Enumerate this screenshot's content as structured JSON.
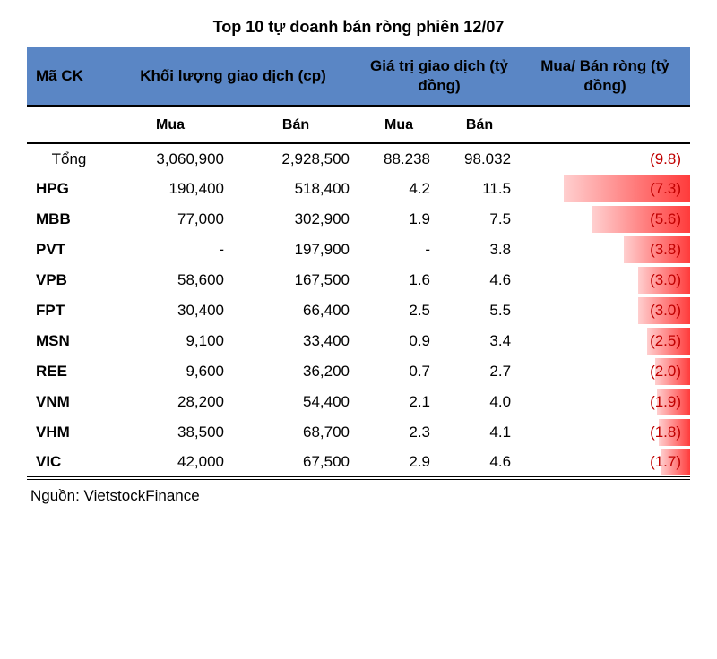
{
  "title": "Top 10 tự doanh bán ròng phiên 12/07",
  "source": "Nguồn: VietstockFinance",
  "colors": {
    "header_bg": "#5a86c5",
    "negative_text": "#c00000",
    "bar_start": "#ffcfcf",
    "bar_end": "#ff3b3b",
    "rule": "#000000"
  },
  "headers": {
    "code": "Mã CK",
    "volume": "Khối lượng giao dịch (cp)",
    "value": "Giá trị giao dịch (tỷ đồng)",
    "net": "Mua/ Bán ròng (tỷ đồng)",
    "buy": "Mua",
    "sell": "Bán"
  },
  "max_abs_net": 9.8,
  "total": {
    "code": "Tổng",
    "buy_vol": "3,060,900",
    "sell_vol": "2,928,500",
    "buy_val": "88.238",
    "sell_val": "98.032",
    "net": "(9.8)",
    "net_raw": 9.8,
    "bar": false
  },
  "rows": [
    {
      "code": "HPG",
      "buy_vol": "190,400",
      "sell_vol": "518,400",
      "buy_val": "4.2",
      "sell_val": "11.5",
      "net": "(7.3)",
      "net_raw": 7.3
    },
    {
      "code": "MBB",
      "buy_vol": "77,000",
      "sell_vol": "302,900",
      "buy_val": "1.9",
      "sell_val": "7.5",
      "net": "(5.6)",
      "net_raw": 5.6
    },
    {
      "code": "PVT",
      "buy_vol": "-",
      "sell_vol": "197,900",
      "buy_val": "-",
      "sell_val": "3.8",
      "net": "(3.8)",
      "net_raw": 3.8
    },
    {
      "code": "VPB",
      "buy_vol": "58,600",
      "sell_vol": "167,500",
      "buy_val": "1.6",
      "sell_val": "4.6",
      "net": "(3.0)",
      "net_raw": 3.0
    },
    {
      "code": "FPT",
      "buy_vol": "30,400",
      "sell_vol": "66,400",
      "buy_val": "2.5",
      "sell_val": "5.5",
      "net": "(3.0)",
      "net_raw": 3.0
    },
    {
      "code": "MSN",
      "buy_vol": "9,100",
      "sell_vol": "33,400",
      "buy_val": "0.9",
      "sell_val": "3.4",
      "net": "(2.5)",
      "net_raw": 2.5
    },
    {
      "code": "REE",
      "buy_vol": "9,600",
      "sell_vol": "36,200",
      "buy_val": "0.7",
      "sell_val": "2.7",
      "net": "(2.0)",
      "net_raw": 2.0
    },
    {
      "code": "VNM",
      "buy_vol": "28,200",
      "sell_vol": "54,400",
      "buy_val": "2.1",
      "sell_val": "4.0",
      "net": "(1.9)",
      "net_raw": 1.9
    },
    {
      "code": "VHM",
      "buy_vol": "38,500",
      "sell_vol": "68,700",
      "buy_val": "2.3",
      "sell_val": "4.1",
      "net": "(1.8)",
      "net_raw": 1.8
    },
    {
      "code": "VIC",
      "buy_vol": "42,000",
      "sell_vol": "67,500",
      "buy_val": "2.9",
      "sell_val": "4.6",
      "net": "(1.7)",
      "net_raw": 1.7
    }
  ]
}
